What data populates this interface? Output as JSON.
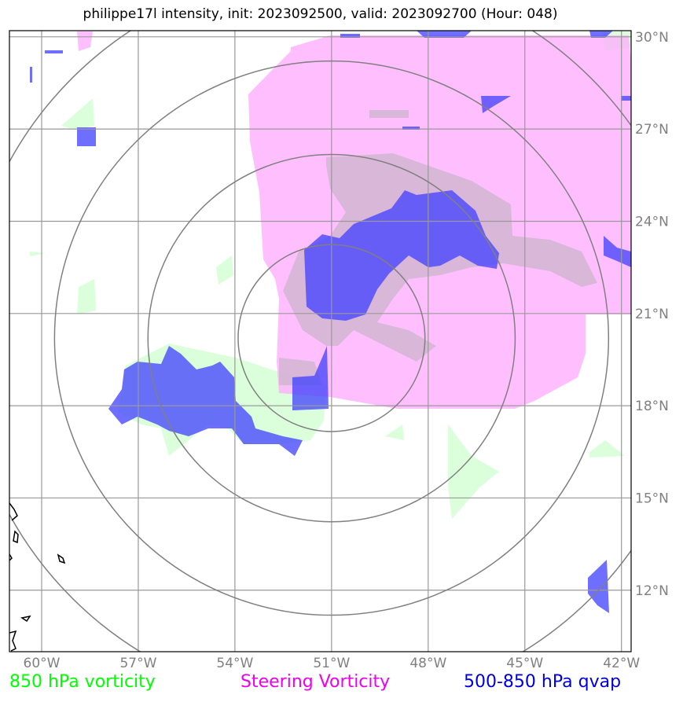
{
  "title": "philippe17l intensity, init: 2023092500, valid: 2023092700 (Hour: 048)",
  "map_data": {
    "lon_range": [
      -61,
      -41.7
    ],
    "lat_range": [
      10.0,
      30.2
    ],
    "lon_ticks": [
      {
        "value": -60,
        "label": "60°W"
      },
      {
        "value": -57,
        "label": "57°W"
      },
      {
        "value": -54,
        "label": "54°W"
      },
      {
        "value": -51,
        "label": "51°W"
      },
      {
        "value": -48,
        "label": "48°W"
      },
      {
        "value": -45,
        "label": "45°W"
      },
      {
        "value": -42,
        "label": "42°W"
      }
    ],
    "lat_ticks": [
      {
        "value": 30,
        "label": "30°N"
      },
      {
        "value": 27,
        "label": "27°N"
      },
      {
        "value": 24,
        "label": "24°N"
      },
      {
        "value": 21,
        "label": "21°N"
      },
      {
        "value": 18,
        "label": "18°N"
      },
      {
        "value": 15,
        "label": "15°N"
      },
      {
        "value": 12,
        "label": "12°N"
      }
    ],
    "storm_center": {
      "lon": -51.0,
      "lat": 20.2
    },
    "range_rings_deg": [
      2.9,
      5.7,
      8.6,
      11.4
    ],
    "grid": true
  },
  "legend": {
    "vorticity_850": {
      "label": "850 hPa vorticity",
      "color": "#00ff00"
    },
    "steering_vorticity": {
      "label": "Steering Vorticity",
      "color": "#ee00ee"
    },
    "qvap": {
      "label": "500-850 hPa qvap",
      "color": "#0000dd"
    }
  },
  "colors": {
    "green_fill": "#ccffcc",
    "magenta_fill": "#ffaaff",
    "blue_fill": "#3f3fff",
    "grid": "#808080",
    "rings": "#808080"
  }
}
